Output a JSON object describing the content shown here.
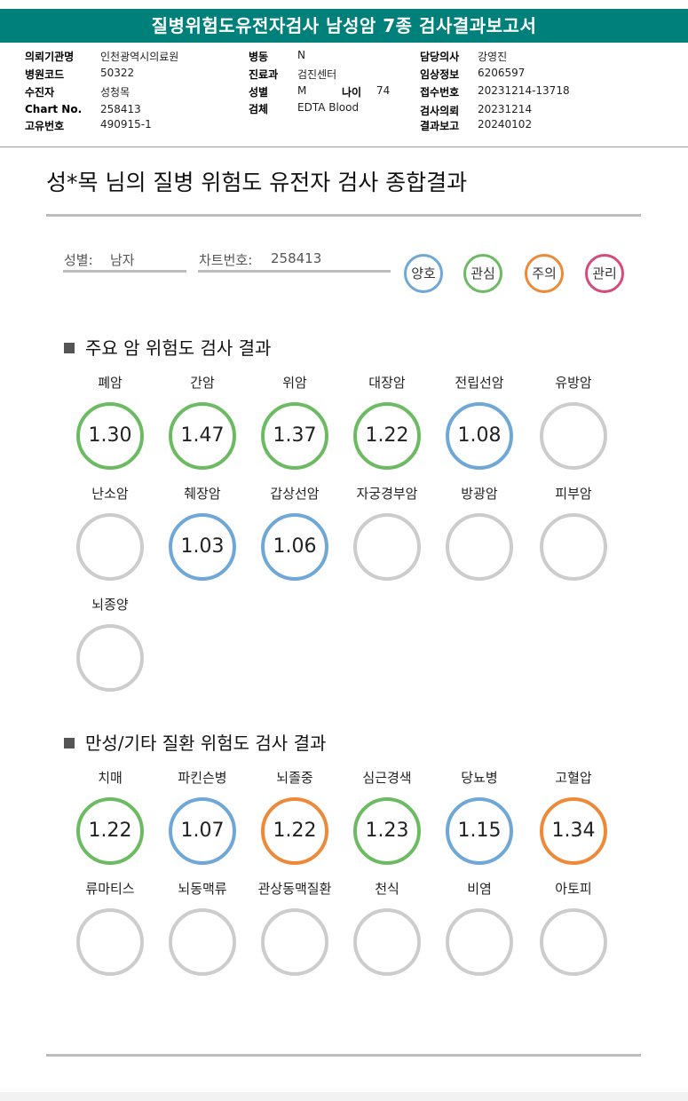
{
  "header": {
    "title": "질병위험도유전자검사 남성암 7종 검사결과보고서"
  },
  "info": [
    {
      "label": "의뢰기관명",
      "value": "인천광역시의료원"
    },
    {
      "label": "병원코드",
      "value": "50322"
    },
    {
      "label": "수진자",
      "value": "성청목"
    },
    {
      "label": "Chart No.",
      "value": "258413"
    },
    {
      "label": "고유번호",
      "value": "490915-1"
    },
    {
      "label": "병동",
      "value": "N"
    },
    {
      "label": "진료과",
      "value": "검진센터"
    },
    {
      "label": "성별",
      "value": "M"
    },
    {
      "label": "나이",
      "value": "74"
    },
    {
      "label": "검체",
      "value": "EDTA Blood"
    },
    {
      "label": "담당의사",
      "value": "강영진"
    },
    {
      "label": "임상정보",
      "value": "6206597"
    },
    {
      "label": "접수번호",
      "value": "20231214-13718"
    },
    {
      "label": "검사의뢰",
      "value": "20231214"
    },
    {
      "label": "결과보고",
      "value": "20240102"
    }
  ],
  "summary": {
    "title": "성*목 님의 질병 위험도 유전자 검사 종합결과",
    "sex_label": "성별:",
    "sex_value": "남자",
    "chart_label": "차트번호:",
    "chart_value": "258413"
  },
  "legend": [
    {
      "label": "양호",
      "color": "#6fa8d6"
    },
    {
      "label": "관심",
      "color": "#6cbb63"
    },
    {
      "label": "주의",
      "color": "#ec8a3a"
    },
    {
      "label": "관리",
      "color": "#d64a7c"
    }
  ],
  "cancer_section": {
    "heading": "주요 암 위험도 검사 결과",
    "items": [
      {
        "name": "폐암",
        "value": "1.30",
        "color": "#6cbb63"
      },
      {
        "name": "간암",
        "value": "1.47",
        "color": "#6cbb63"
      },
      {
        "name": "위암",
        "value": "1.37",
        "color": "#6cbb63"
      },
      {
        "name": "대장암",
        "value": "1.22",
        "color": "#6cbb63"
      },
      {
        "name": "전립선암",
        "value": "1.08",
        "color": "#6fa8d6"
      },
      {
        "name": "유방암",
        "value": "",
        "color": "#cccccc"
      },
      {
        "name": "난소암",
        "value": "",
        "color": "#cccccc"
      },
      {
        "name": "췌장암",
        "value": "1.03",
        "color": "#6fa8d6"
      },
      {
        "name": "갑상선암",
        "value": "1.06",
        "color": "#6fa8d6"
      },
      {
        "name": "자궁경부암",
        "value": "",
        "color": "#cccccc"
      },
      {
        "name": "방광암",
        "value": "",
        "color": "#cccccc"
      },
      {
        "name": "피부암",
        "value": "",
        "color": "#cccccc"
      },
      {
        "name": "뇌종양",
        "value": "",
        "color": "#cccccc"
      }
    ]
  },
  "chronic_section": {
    "heading": "만성/기타 질환 위험도 검사 결과",
    "items": [
      {
        "name": "치매",
        "value": "1.22",
        "color": "#6cbb63"
      },
      {
        "name": "파킨슨병",
        "value": "1.07",
        "color": "#6fa8d6"
      },
      {
        "name": "뇌졸중",
        "value": "1.22",
        "color": "#ec8a3a"
      },
      {
        "name": "심근경색",
        "value": "1.23",
        "color": "#6cbb63"
      },
      {
        "name": "당뇨병",
        "value": "1.15",
        "color": "#6fa8d6"
      },
      {
        "name": "고혈압",
        "value": "1.34",
        "color": "#ec8a3a"
      },
      {
        "name": "류마티스",
        "value": "",
        "color": "#cccccc"
      },
      {
        "name": "뇌동맥류",
        "value": "",
        "color": "#cccccc"
      },
      {
        "name": "관상동맥질환",
        "value": "",
        "color": "#cccccc"
      },
      {
        "name": "천식",
        "value": "",
        "color": "#cccccc"
      },
      {
        "name": "비염",
        "value": "",
        "color": "#cccccc"
      },
      {
        "name": "아토피",
        "value": "",
        "color": "#cccccc"
      }
    ]
  }
}
